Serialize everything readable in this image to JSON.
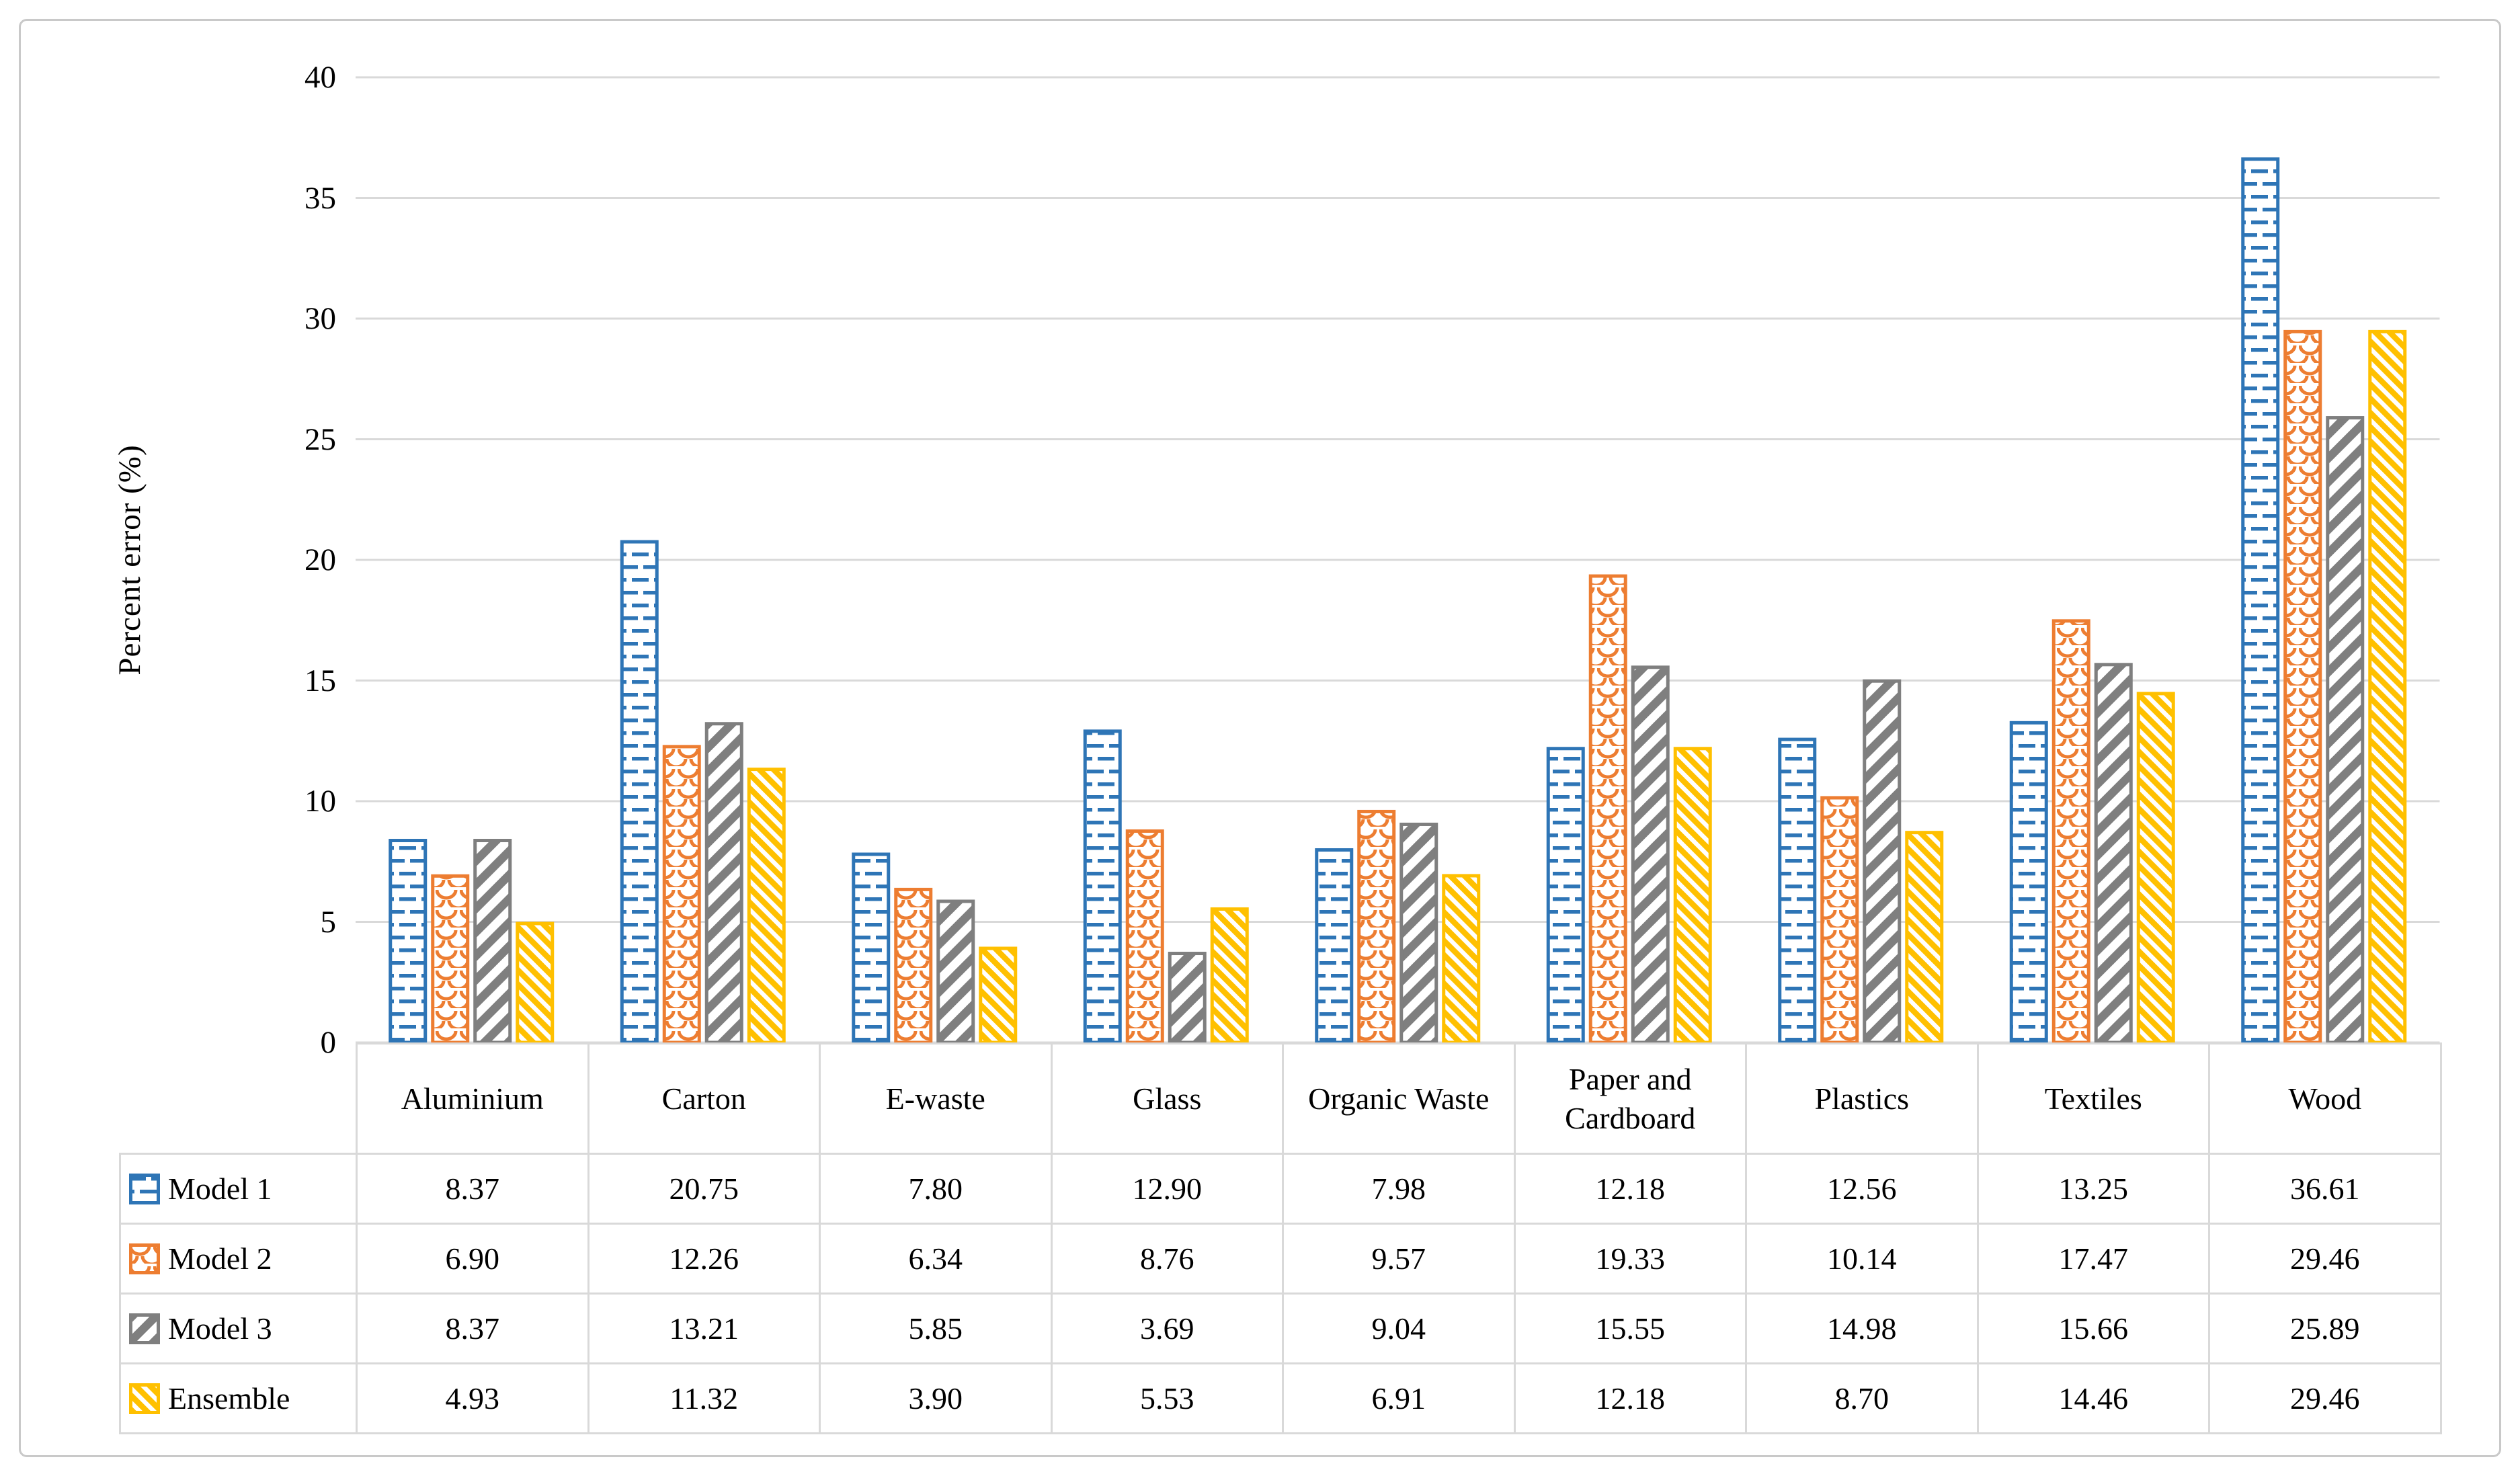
{
  "chart_data": {
    "type": "bar",
    "title": "",
    "xlabel": "",
    "ylabel": "Percent error (%)",
    "ylim": [
      0,
      40
    ],
    "yticks": [
      0,
      5,
      10,
      15,
      20,
      25,
      30,
      35,
      40
    ],
    "grid": true,
    "gridline_color": "#d9d9d9",
    "legend_position": "data-table-left-column",
    "value_format_decimals": 2,
    "categories": [
      "Aluminium",
      "Carton",
      "E-waste",
      "Glass",
      "Organic Waste",
      "Paper and Cardboard",
      "Plastics",
      "Textiles",
      "Wood"
    ],
    "series": [
      {
        "name": "Model 1",
        "color": "#2E75B6",
        "pattern": "horizontal-dash",
        "values": [
          8.37,
          20.75,
          7.8,
          12.9,
          7.98,
          12.18,
          12.56,
          13.25,
          36.61
        ]
      },
      {
        "name": "Model 2",
        "color": "#ED7D31",
        "pattern": "shingle-scale",
        "values": [
          6.9,
          12.26,
          6.34,
          8.76,
          9.57,
          19.33,
          10.14,
          17.47,
          29.46
        ]
      },
      {
        "name": "Model 3",
        "color": "#7F7F7F",
        "pattern": "diagonal-down",
        "values": [
          8.37,
          13.21,
          5.85,
          3.69,
          9.04,
          15.55,
          14.98,
          15.66,
          25.89
        ]
      },
      {
        "name": "Ensemble",
        "color": "#FFC000",
        "pattern": "diagonal-up",
        "values": [
          4.93,
          11.32,
          3.9,
          5.53,
          6.91,
          12.18,
          8.7,
          14.46,
          29.46
        ]
      }
    ]
  }
}
